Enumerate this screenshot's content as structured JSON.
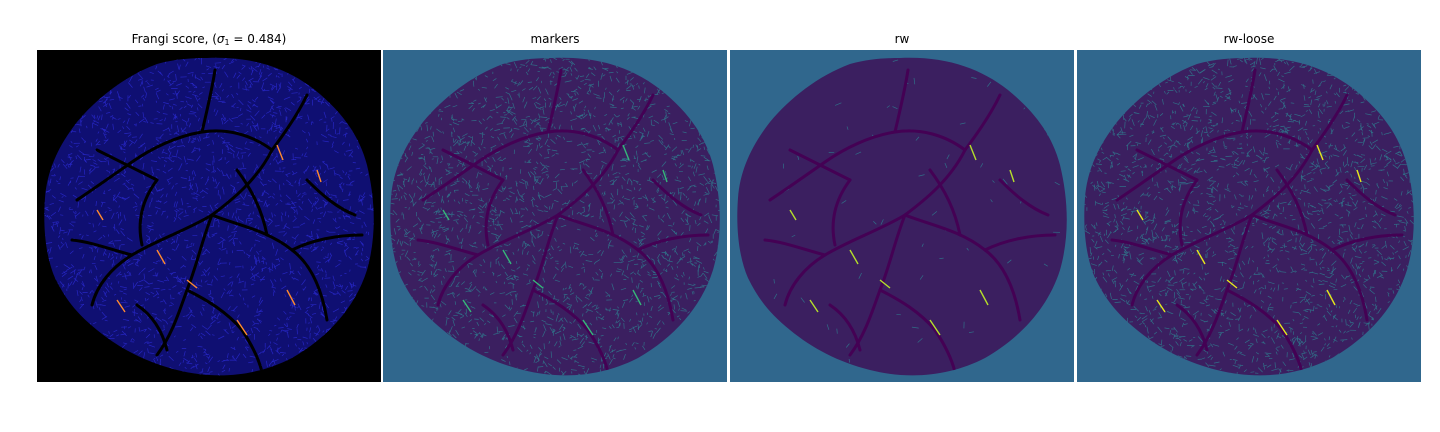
{
  "panels": [
    {
      "title_prefix": "Frangi score, (",
      "title_symbol": "σ",
      "title_sub": "1",
      "title_suffix": " = 0.484)",
      "background": "#000000",
      "blob": "#0f0f72",
      "mesh": "#2a2ad0",
      "vessel": "#000000",
      "highlight": "#ff8a30"
    },
    {
      "title": "markers",
      "background": "#30678d",
      "blob": "#3b1f60",
      "mesh": "#2f7d8e",
      "vessel": "#440154",
      "highlight": "#35b779"
    },
    {
      "title": "rw",
      "background": "#30678d",
      "blob": "#3b1f60",
      "mesh": "#2f7d8e",
      "vessel": "#440154",
      "highlight": "#b5de2b"
    },
    {
      "title": "rw-loose",
      "background": "#30678d",
      "blob": "#3b1f60",
      "mesh": "#2f7d8e",
      "vessel": "#440154",
      "highlight": "#e6e81d"
    }
  ]
}
